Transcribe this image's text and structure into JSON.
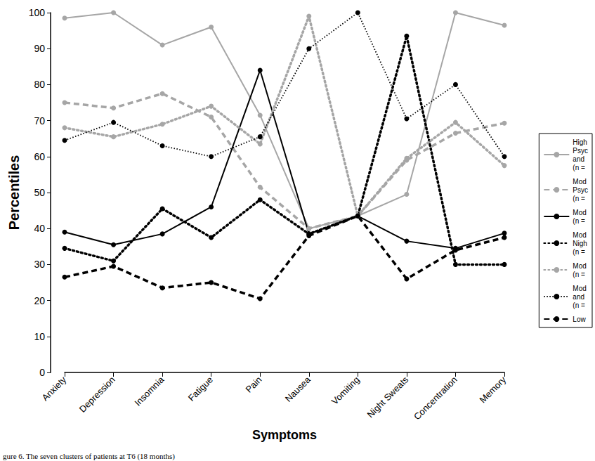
{
  "chart_data": {
    "type": "line",
    "x_label": "Symptoms",
    "y_label": "Percentiles",
    "caption": "gure 6. The seven clusters of patients at T6 (18 months)",
    "categories": [
      "Anxiety",
      "Depression",
      "Insomnia",
      "Fatigue",
      "Pain",
      "Nausea",
      "Vomiting",
      "Night Sweats",
      "Concentration",
      "Memory"
    ],
    "ylim": [
      0,
      100
    ],
    "yticks": [
      0,
      10,
      20,
      30,
      40,
      50,
      60,
      70,
      80,
      90,
      100
    ],
    "grid": false,
    "legend": "right",
    "marker": "circle",
    "series": [
      {
        "name": "High\nPsyc\nand\n(n =",
        "color": "#a6a6a6",
        "line_style": "solid",
        "values": [
          98.5,
          100,
          91,
          96,
          71.5,
          40,
          43.5,
          49.5,
          100,
          96.5
        ]
      },
      {
        "name": "Mod\nPsyc\n(n =",
        "color": "#a6a6a6",
        "line_style": "dashed",
        "values": [
          75,
          73.5,
          77.5,
          71,
          51.5,
          40,
          43.5,
          59,
          66.5,
          69.3
        ]
      },
      {
        "name": "Mod\n(n =",
        "color": "#000000",
        "line_style": "solid",
        "values": [
          39,
          35.5,
          38.5,
          46,
          84,
          38.5,
          43.5,
          36.5,
          34.5,
          38.7
        ]
      },
      {
        "name": "Mod\nNigh\n(n =",
        "color": "#000000",
        "line_style": "dotted",
        "values": [
          34.5,
          31,
          45.5,
          37.5,
          48,
          38.5,
          43.5,
          93.5,
          30,
          30
        ]
      },
      {
        "name": "Mod\n(n = ",
        "color": "#a6a6a6",
        "line_style": "dotted",
        "values": [
          68,
          65.5,
          69,
          74,
          63.5,
          99,
          43.5,
          59.5,
          69.5,
          57.5
        ]
      },
      {
        "name": "Mod\nand\n(n =",
        "color": "#000000",
        "line_style": "thin-dotted",
        "values": [
          64.5,
          69.5,
          63,
          60,
          65.5,
          90,
          100,
          70.5,
          80,
          60
        ]
      },
      {
        "name": "Low",
        "color": "#000000",
        "line_style": "dashed",
        "values": [
          26.5,
          29.5,
          23.5,
          25,
          20.5,
          38,
          43.5,
          26,
          34,
          37.5
        ]
      }
    ]
  }
}
